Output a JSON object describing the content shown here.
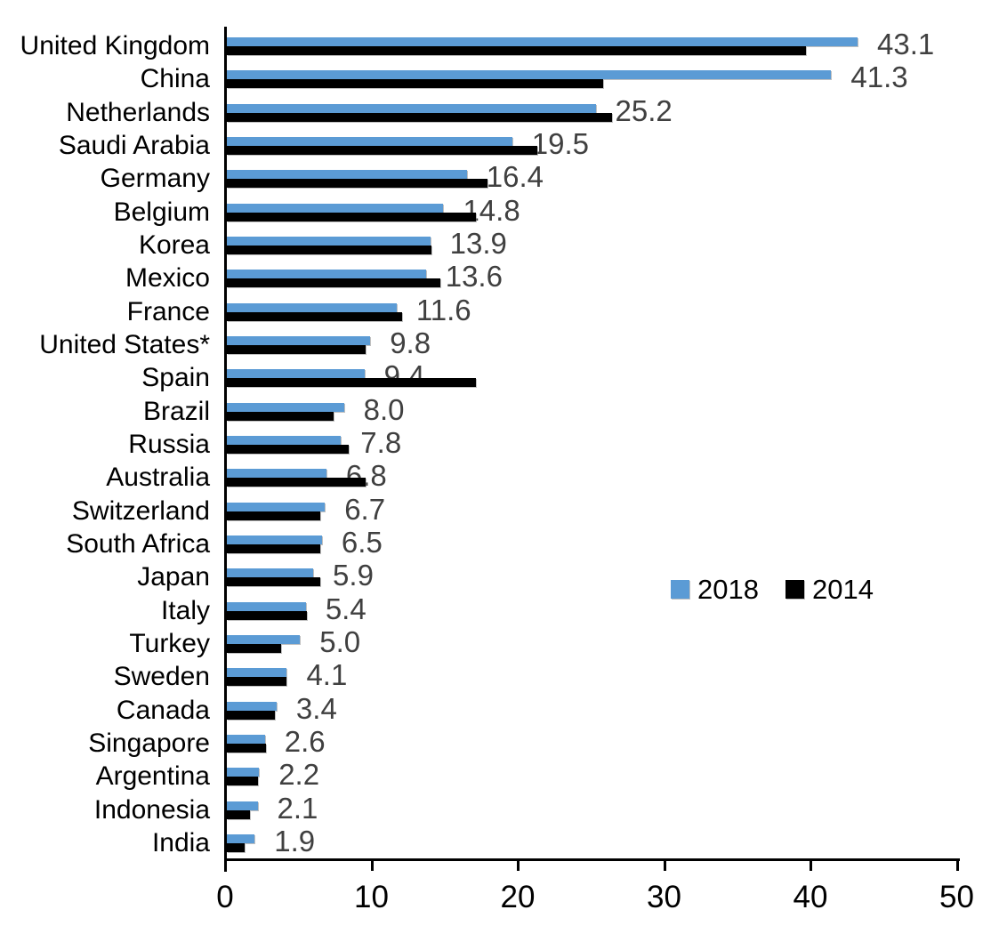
{
  "chart_data": {
    "type": "bar",
    "orientation": "horizontal",
    "title": "",
    "xlabel": "",
    "ylabel": "",
    "xlim": [
      0,
      50
    ],
    "x_ticks": [
      0,
      10,
      20,
      30,
      40,
      50
    ],
    "x_tick_labels": [
      "0",
      "10",
      "20",
      "30",
      "40",
      "50"
    ],
    "grid": false,
    "legend_position": "middle-right",
    "categories": [
      "United Kingdom",
      "China",
      "Netherlands",
      "Saudi Arabia",
      "Germany",
      "Belgium",
      "Korea",
      "Mexico",
      "France",
      "United States*",
      "Spain",
      "Brazil",
      "Russia",
      "Australia",
      "Switzerland",
      "South Africa",
      "Japan",
      "Italy",
      "Turkey",
      "Sweden",
      "Canada",
      "Singapore",
      "Argentina",
      "Indonesia",
      "India"
    ],
    "series": [
      {
        "name": "2018",
        "color": "#5B9BD5",
        "values": [
          43.1,
          41.3,
          25.2,
          19.5,
          16.4,
          14.8,
          13.9,
          13.6,
          11.6,
          9.8,
          9.4,
          8.0,
          7.8,
          6.8,
          6.7,
          6.5,
          5.9,
          5.4,
          5.0,
          4.1,
          3.4,
          2.6,
          2.2,
          2.1,
          1.9
        ]
      },
      {
        "name": "2014",
        "color": "#000000",
        "values": [
          39.6,
          25.7,
          26.3,
          21.2,
          17.8,
          17.0,
          14.0,
          14.6,
          12.0,
          9.5,
          17.0,
          7.3,
          8.3,
          9.5,
          6.4,
          6.4,
          6.4,
          5.5,
          3.7,
          4.1,
          3.3,
          2.7,
          2.1,
          1.6,
          1.2
        ]
      }
    ],
    "data_labels": {
      "series": "2018",
      "values": [
        "43.1",
        "41.3",
        "25.2",
        "19.5",
        "16.4",
        "14.8",
        "13.9",
        "13.6",
        "11.6",
        "9.8",
        "9.4",
        "8.0",
        "7.8",
        "6.8",
        "6.7",
        "6.5",
        "5.9",
        "5.4",
        "5.0",
        "4.1",
        "3.4",
        "2.6",
        "2.2",
        "2.1",
        "1.9"
      ],
      "color": "#404040"
    }
  },
  "legend": {
    "items": [
      {
        "label": "2018",
        "color": "#5B9BD5"
      },
      {
        "label": "2014",
        "color": "#000000"
      }
    ]
  },
  "colors": {
    "background": "#ffffff",
    "axis": "#000000",
    "series_2018": "#5B9BD5",
    "series_2014": "#000000",
    "data_label": "#404040"
  }
}
